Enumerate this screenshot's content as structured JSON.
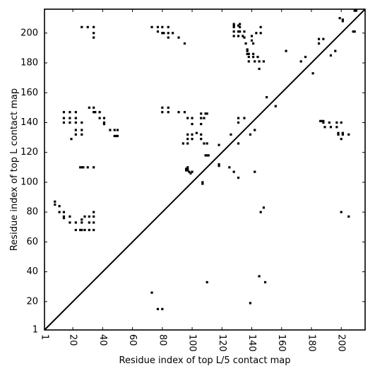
{
  "chart_data": {
    "type": "scatter",
    "title": "",
    "xlabel": "Residue index of top L/5 contact map",
    "ylabel": "Residue index of top L contact map",
    "xlim": [
      1,
      216
    ],
    "ylim": [
      1,
      216
    ],
    "xticks": [
      1,
      20,
      40,
      60,
      80,
      100,
      120,
      140,
      160,
      180,
      200
    ],
    "yticks": [
      1,
      20,
      40,
      60,
      80,
      100,
      120,
      140,
      160,
      180,
      200
    ],
    "grid": false,
    "legend": "none",
    "marker": "square",
    "marker_color": "#000000",
    "diagonal": {
      "from": [
        1,
        1
      ],
      "to": [
        216,
        216
      ],
      "color": "#000000"
    },
    "series": [
      {
        "points": [
          [
            8,
            87
          ],
          [
            8,
            85
          ],
          [
            11,
            84
          ],
          [
            11,
            80
          ],
          [
            14,
            80
          ],
          [
            14,
            77
          ],
          [
            14,
            76
          ],
          [
            18,
            77
          ],
          [
            18,
            73
          ],
          [
            22,
            73
          ],
          [
            22,
            68
          ],
          [
            25,
            68
          ],
          [
            26,
            68
          ],
          [
            28,
            68
          ],
          [
            31,
            68
          ],
          [
            26,
            75
          ],
          [
            26,
            73
          ],
          [
            28,
            77
          ],
          [
            31,
            73
          ],
          [
            31,
            77
          ],
          [
            34,
            73
          ],
          [
            34,
            77
          ],
          [
            34,
            80
          ],
          [
            34,
            68
          ],
          [
            25,
            110
          ],
          [
            26,
            110
          ],
          [
            27,
            110
          ],
          [
            30,
            110
          ],
          [
            34,
            110
          ],
          [
            14,
            147
          ],
          [
            14,
            143
          ],
          [
            14,
            140
          ],
          [
            18,
            147
          ],
          [
            18,
            143
          ],
          [
            18,
            140
          ],
          [
            19,
            129
          ],
          [
            22,
            147
          ],
          [
            22,
            143
          ],
          [
            22,
            140
          ],
          [
            22,
            135
          ],
          [
            22,
            132
          ],
          [
            26,
            140
          ],
          [
            26,
            135
          ],
          [
            26,
            132
          ],
          [
            31,
            150
          ],
          [
            34,
            150
          ],
          [
            34,
            147
          ],
          [
            35,
            147
          ],
          [
            38,
            147
          ],
          [
            38,
            143
          ],
          [
            41,
            143
          ],
          [
            41,
            140
          ],
          [
            41,
            139
          ],
          [
            45,
            135
          ],
          [
            48,
            135
          ],
          [
            48,
            131
          ],
          [
            49,
            131
          ],
          [
            50,
            131
          ],
          [
            50,
            135
          ],
          [
            26,
            204
          ],
          [
            30,
            204
          ],
          [
            34,
            204
          ],
          [
            34,
            200
          ],
          [
            34,
            197
          ],
          [
            73,
            204
          ],
          [
            77,
            204
          ],
          [
            77,
            201
          ],
          [
            80,
            204
          ],
          [
            80,
            200
          ],
          [
            81,
            200
          ],
          [
            84,
            204
          ],
          [
            84,
            200
          ],
          [
            84,
            197
          ],
          [
            87,
            200
          ],
          [
            91,
            197
          ],
          [
            95,
            193
          ],
          [
            80,
            150
          ],
          [
            80,
            147
          ],
          [
            84,
            150
          ],
          [
            84,
            147
          ],
          [
            91,
            147
          ],
          [
            95,
            147
          ],
          [
            94,
            126
          ],
          [
            97,
            143
          ],
          [
            97,
            132
          ],
          [
            97,
            129
          ],
          [
            97,
            126
          ],
          [
            100,
            143
          ],
          [
            100,
            139
          ],
          [
            100,
            132
          ],
          [
            100,
            129
          ],
          [
            103,
            133
          ],
          [
            106,
            146
          ],
          [
            106,
            143
          ],
          [
            106,
            139
          ],
          [
            106,
            132
          ],
          [
            106,
            129
          ],
          [
            108,
            143
          ],
          [
            108,
            126
          ],
          [
            109,
            146
          ],
          [
            110,
            146
          ],
          [
            110,
            126
          ],
          [
            109,
            118
          ],
          [
            110,
            118
          ],
          [
            111,
            118
          ],
          [
            96,
            109
          ],
          [
            96,
            108
          ],
          [
            97,
            109
          ],
          [
            97,
            108
          ],
          [
            97,
            110
          ],
          [
            98,
            107
          ],
          [
            99,
            106
          ],
          [
            100,
            107
          ],
          [
            107,
            100
          ],
          [
            107,
            99
          ],
          [
            118,
            112
          ],
          [
            118,
            111
          ],
          [
            118,
            125
          ],
          [
            110,
            33
          ],
          [
            73,
            26
          ],
          [
            77,
            15
          ],
          [
            80,
            15
          ],
          [
            125,
            110
          ],
          [
            128,
            107
          ],
          [
            126,
            132
          ],
          [
            131,
            103
          ],
          [
            131,
            143
          ],
          [
            131,
            140
          ],
          [
            131,
            126
          ],
          [
            135,
            143
          ],
          [
            139,
            132
          ],
          [
            139,
            19
          ],
          [
            142,
            135
          ],
          [
            142,
            107
          ],
          [
            145,
            37
          ],
          [
            146,
            80
          ],
          [
            148,
            83
          ],
          [
            149,
            33
          ],
          [
            128,
            206
          ],
          [
            128,
            205
          ],
          [
            128,
            204
          ],
          [
            128,
            201
          ],
          [
            128,
            198
          ],
          [
            131,
            205
          ],
          [
            131,
            201
          ],
          [
            131,
            198
          ],
          [
            132,
            206
          ],
          [
            132,
            204
          ],
          [
            132,
            201
          ],
          [
            134,
            198
          ],
          [
            135,
            201
          ],
          [
            135,
            197
          ],
          [
            136,
            193
          ],
          [
            137,
            189
          ],
          [
            137,
            188
          ],
          [
            137,
            186
          ],
          [
            138,
            186
          ],
          [
            138,
            184
          ],
          [
            138,
            181
          ],
          [
            140,
            198
          ],
          [
            140,
            195
          ],
          [
            141,
            193
          ],
          [
            141,
            186
          ],
          [
            141,
            184
          ],
          [
            142,
            181
          ],
          [
            143,
            200
          ],
          [
            144,
            184
          ],
          [
            145,
            181
          ],
          [
            145,
            176
          ],
          [
            146,
            200
          ],
          [
            146,
            204
          ],
          [
            148,
            181
          ],
          [
            150,
            157
          ],
          [
            156,
            151
          ],
          [
            163,
            188
          ],
          [
            173,
            181
          ],
          [
            176,
            184
          ],
          [
            181,
            173
          ],
          [
            185,
            196
          ],
          [
            185,
            193
          ],
          [
            186,
            141
          ],
          [
            187,
            141
          ],
          [
            188,
            196
          ],
          [
            188,
            141
          ],
          [
            188,
            140
          ],
          [
            189,
            137
          ],
          [
            192,
            140
          ],
          [
            193,
            137
          ],
          [
            193,
            185
          ],
          [
            196,
            188
          ],
          [
            197,
            140
          ],
          [
            197,
            137
          ],
          [
            198,
            133
          ],
          [
            198,
            132
          ],
          [
            200,
            140
          ],
          [
            200,
            129
          ],
          [
            201,
            132
          ],
          [
            201,
            133
          ],
          [
            200,
            80
          ],
          [
            205,
            132
          ],
          [
            205,
            77
          ],
          [
            199,
            210
          ],
          [
            201,
            209
          ],
          [
            201,
            208
          ],
          [
            208,
            201
          ],
          [
            209,
            201
          ],
          [
            209,
            215
          ],
          [
            210,
            215
          ]
        ]
      }
    ]
  }
}
